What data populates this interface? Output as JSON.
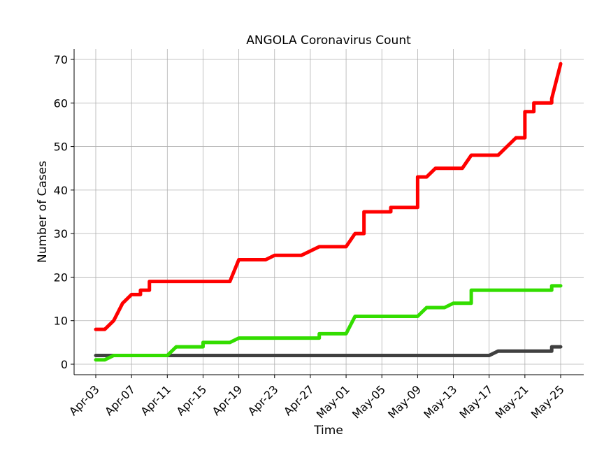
{
  "chart_data": {
    "type": "line",
    "title": "ANGOLA Coronavirus Count",
    "xlabel": "Time",
    "ylabel": "Number of Cases",
    "ylim": [
      -2,
      72
    ],
    "xlim": [
      "2020-04-00",
      "2020-05-27"
    ],
    "grid": true,
    "legend": "none",
    "x_tick_labels": [
      "Apr-03",
      "Apr-07",
      "Apr-11",
      "Apr-15",
      "Apr-19",
      "Apr-23",
      "Apr-27",
      "May-01",
      "May-05",
      "May-09",
      "May-13",
      "May-17",
      "May-21",
      "May-25"
    ],
    "x_tick_dates": [
      "2020-04-03",
      "2020-04-07",
      "2020-04-11",
      "2020-04-15",
      "2020-04-19",
      "2020-04-23",
      "2020-04-27",
      "2020-05-01",
      "2020-05-05",
      "2020-05-09",
      "2020-05-13",
      "2020-05-17",
      "2020-05-21",
      "2020-05-25"
    ],
    "y_ticks": [
      0,
      10,
      20,
      30,
      40,
      50,
      60,
      70
    ],
    "series": [
      {
        "color": "#ff0000",
        "x": [
          "2020-04-03",
          "2020-04-04",
          "2020-04-05",
          "2020-04-06",
          "2020-04-07",
          "2020-04-08",
          "2020-04-08",
          "2020-04-09",
          "2020-04-09",
          "2020-04-18",
          "2020-04-19",
          "2020-04-22",
          "2020-04-23",
          "2020-04-26",
          "2020-04-28",
          "2020-05-01",
          "2020-05-02",
          "2020-05-03",
          "2020-05-03",
          "2020-05-06",
          "2020-05-06",
          "2020-05-09",
          "2020-05-09",
          "2020-05-10",
          "2020-05-11",
          "2020-05-14",
          "2020-05-15",
          "2020-05-18",
          "2020-05-20",
          "2020-05-21",
          "2020-05-21",
          "2020-05-22",
          "2020-05-22",
          "2020-05-24",
          "2020-05-24",
          "2020-05-25"
        ],
        "y": [
          8,
          8,
          10,
          14,
          16,
          16,
          17,
          17,
          19,
          19,
          24,
          24,
          25,
          25,
          27,
          27,
          30,
          30,
          35,
          35,
          36,
          36,
          43,
          43,
          45,
          45,
          48,
          48,
          52,
          52,
          58,
          58,
          60,
          60,
          61,
          69
        ]
      },
      {
        "color": "#33dd00",
        "x": [
          "2020-04-03",
          "2020-04-04",
          "2020-04-05",
          "2020-04-11",
          "2020-04-12",
          "2020-04-15",
          "2020-04-15",
          "2020-04-18",
          "2020-04-19",
          "2020-04-28",
          "2020-04-28",
          "2020-05-01",
          "2020-05-02",
          "2020-05-09",
          "2020-05-10",
          "2020-05-12",
          "2020-05-13",
          "2020-05-15",
          "2020-05-15",
          "2020-05-24",
          "2020-05-24",
          "2020-05-25"
        ],
        "y": [
          1,
          1,
          2,
          2,
          4,
          4,
          5,
          5,
          6,
          6,
          7,
          7,
          11,
          11,
          13,
          13,
          14,
          14,
          17,
          17,
          18,
          18
        ]
      },
      {
        "color": "#404040",
        "x": [
          "2020-04-03",
          "2020-05-17",
          "2020-05-18",
          "2020-05-24",
          "2020-05-24",
          "2020-05-25"
        ],
        "y": [
          2,
          2,
          3,
          3,
          4,
          4
        ]
      }
    ]
  }
}
